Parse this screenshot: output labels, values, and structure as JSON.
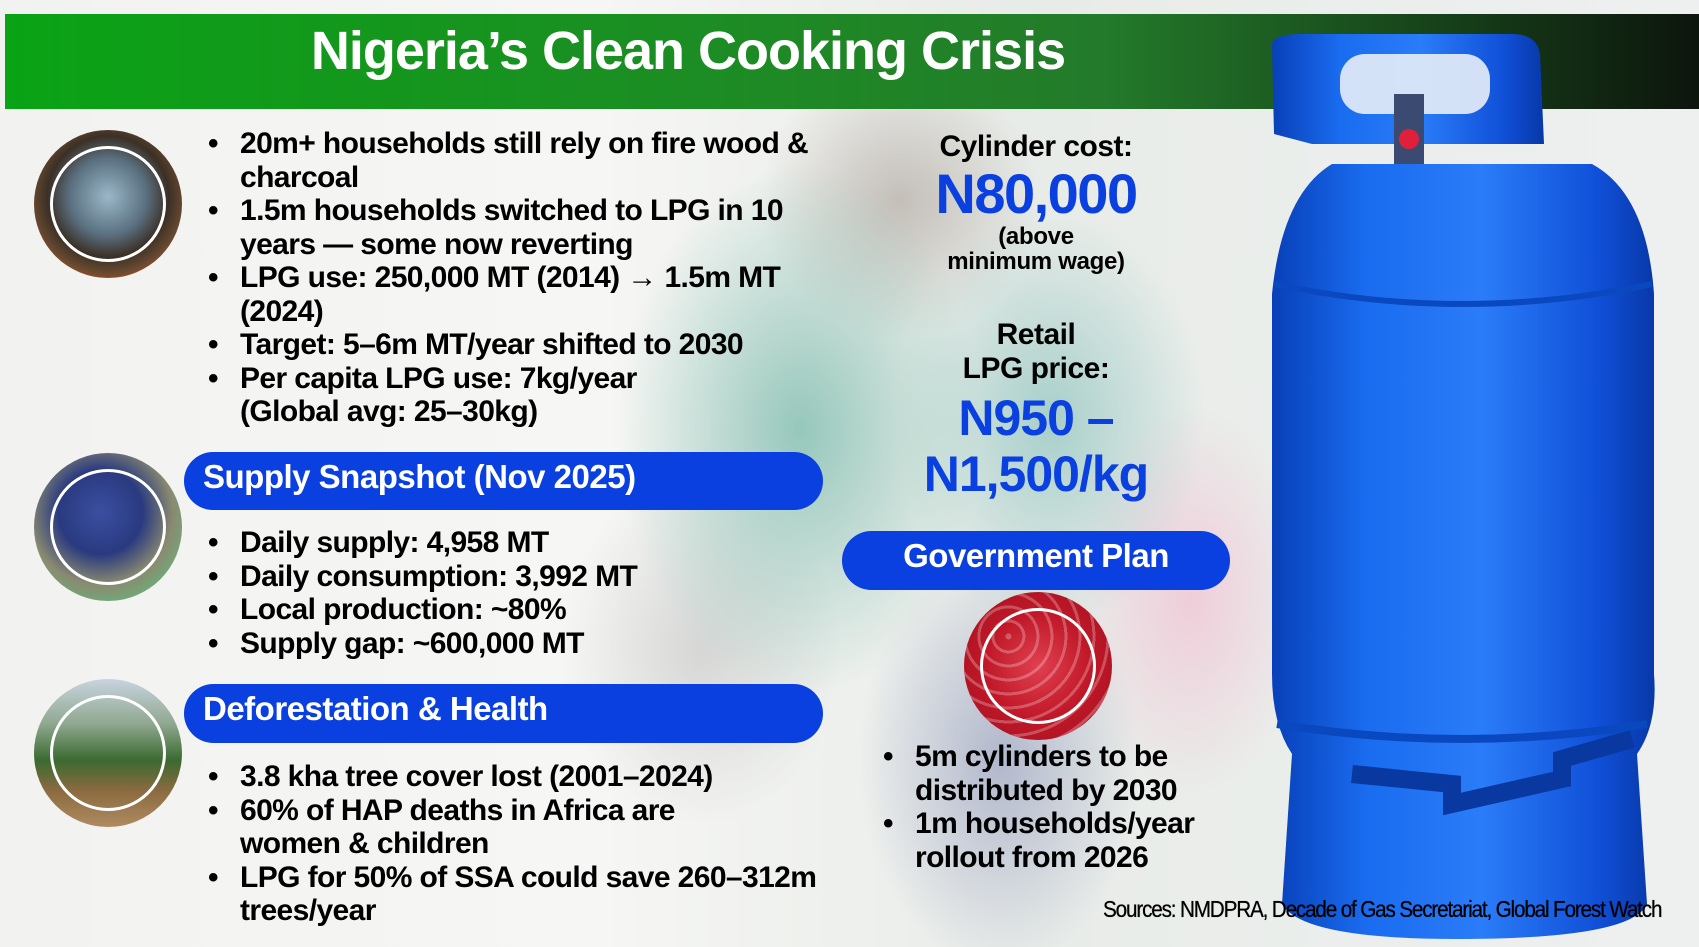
{
  "header": {
    "title": "Nigeria’s Clean Cooking Crisis"
  },
  "colors": {
    "header_green": "#0aa315",
    "accent_blue": "#0a3fe0",
    "cylinder_blue": "#1060e8"
  },
  "icons": [
    "cooking-pot-photo",
    "gas-worker-photo",
    "logged-forest-photo",
    "red-cylinders-photo",
    "blue-lpg-cylinder-photo"
  ],
  "overview": {
    "items": [
      "20m+ households still rely on fire wood & charcoal",
      "1.5m households switched to LPG in 10 years — some now reverting",
      "LPG use: 250,000 MT (2014) → 1.5m MT (2024)",
      "Target: 5–6m MT/year shifted to 2030",
      "Per capita LPG use: 7kg/year (Global avg: 25–30kg)"
    ]
  },
  "supply": {
    "heading": "Supply Snapshot (Nov 2025)",
    "items": [
      "Daily supply: 4,958 MT",
      "Daily consumption: 3,992 MT",
      "Local production: ~80%",
      "Supply gap: ~600,000 MT"
    ]
  },
  "deforestation": {
    "heading": "Deforestation & Health",
    "items": [
      "3.8 kha tree cover lost (2001–2024)",
      "60% of HAP deaths in Africa are women & children",
      "LPG for 50% of SSA could save 260–312m trees/year"
    ]
  },
  "cylinder_cost": {
    "label": "Cylinder cost:",
    "value": "N80,000",
    "note_line1": "(above",
    "note_line2": "minimum wage)"
  },
  "retail_price": {
    "label_line1": "Retail",
    "label_line2": "LPG price:",
    "value_line1": "N950 –",
    "value_line2": "N1,500/kg"
  },
  "government": {
    "heading": "Government Plan",
    "items": [
      "5m cylinders to be distributed by 2030",
      "1m households/year rollout from 2026"
    ]
  },
  "sources": "Sources: NMDPRA, Decade of Gas Secretariat, Global Forest Watch"
}
